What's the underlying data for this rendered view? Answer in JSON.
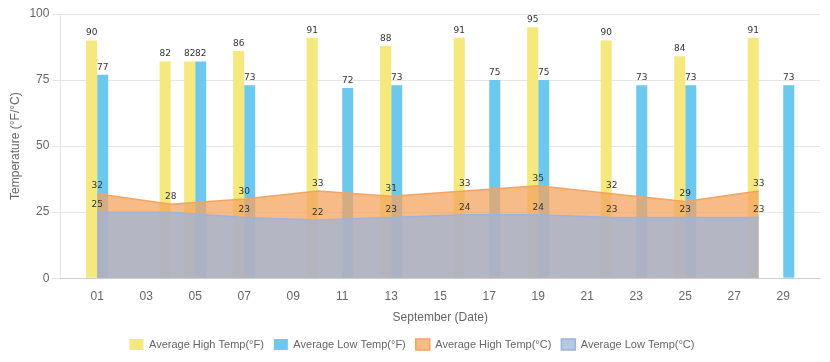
{
  "chart_data": {
    "type": "bar",
    "xlabel": "September (Date)",
    "ylabel": "Temperature (°F/°C)",
    "xlim": [
      -0.5,
      30.5
    ],
    "xticks": [
      {
        "value": 1,
        "label": "01"
      },
      {
        "value": 3,
        "label": "03"
      },
      {
        "value": 5,
        "label": "05"
      },
      {
        "value": 7,
        "label": "07"
      },
      {
        "value": 9,
        "label": "09"
      },
      {
        "value": 11,
        "label": "11"
      },
      {
        "value": 13,
        "label": "13"
      },
      {
        "value": 15,
        "label": "15"
      },
      {
        "value": 17,
        "label": "17"
      },
      {
        "value": 19,
        "label": "19"
      },
      {
        "value": 21,
        "label": "21"
      },
      {
        "value": 23,
        "label": "23"
      },
      {
        "value": 25,
        "label": "25"
      },
      {
        "value": 27,
        "label": "27"
      },
      {
        "value": 29,
        "label": "29"
      }
    ],
    "ylim": [
      0,
      100
    ],
    "yticks": [
      0,
      25,
      50,
      75,
      100
    ],
    "grid": "y",
    "legend": "bottom",
    "data_labels": true,
    "series": [
      {
        "name": "Average High Temp(°F)",
        "type": "bar",
        "color": "#F5E87C",
        "x": [
          1,
          4,
          5,
          7,
          10,
          11,
          13,
          16,
          17,
          19,
          22,
          23,
          25,
          28,
          29
        ],
        "values": [
          90,
          82,
          82,
          86,
          91,
          null,
          88,
          91,
          null,
          95,
          90,
          null,
          84,
          91,
          null
        ]
      },
      {
        "name": "Average Low Temp(°F)",
        "type": "bar",
        "color": "#6DC8EE",
        "x": [
          1,
          4,
          5,
          7,
          10,
          11,
          13,
          16,
          17,
          19,
          22,
          23,
          25,
          28,
          29
        ],
        "values": [
          77,
          null,
          82,
          73,
          null,
          72,
          73,
          null,
          75,
          75,
          null,
          73,
          73,
          null,
          73
        ]
      },
      {
        "name": "Average High Temp(°C)",
        "type": "area",
        "color": "#F4A460",
        "x": [
          1,
          4,
          7,
          10,
          13,
          16,
          19,
          22,
          25,
          28
        ],
        "values": [
          32,
          28,
          30,
          33,
          31,
          33,
          35,
          32,
          29,
          33
        ]
      },
      {
        "name": "Average Low Temp(°C)",
        "type": "area",
        "color": "#9EB4D8",
        "x": [
          1,
          4,
          7,
          10,
          13,
          16,
          19,
          22,
          25,
          28
        ],
        "values": [
          25,
          25,
          23,
          22,
          23,
          24,
          24,
          23,
          23,
          23
        ],
        "value_labels": [
          "25",
          null,
          "23",
          "22",
          "23",
          "24",
          "24",
          "23",
          "23",
          "23"
        ]
      }
    ]
  }
}
